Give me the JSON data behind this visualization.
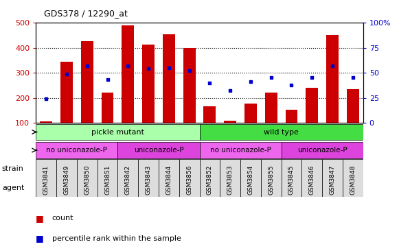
{
  "title": "GDS378 / 12290_at",
  "categories": [
    "GSM3841",
    "GSM3849",
    "GSM3850",
    "GSM3851",
    "GSM3842",
    "GSM3843",
    "GSM3844",
    "GSM3856",
    "GSM3852",
    "GSM3853",
    "GSM3854",
    "GSM3855",
    "GSM3845",
    "GSM3846",
    "GSM3847",
    "GSM3848"
  ],
  "counts": [
    105,
    345,
    425,
    220,
    488,
    413,
    453,
    398,
    165,
    108,
    178,
    220,
    152,
    240,
    450,
    235
  ],
  "percentiles": [
    24,
    49,
    57,
    43,
    57,
    54,
    55,
    52,
    40,
    32,
    41,
    45,
    38,
    45,
    57,
    45
  ],
  "bar_color": "#cc0000",
  "dot_color": "#0000cc",
  "ylim_left": [
    100,
    500
  ],
  "ylim_right": [
    0,
    100
  ],
  "yticks_left": [
    100,
    200,
    300,
    400,
    500
  ],
  "yticks_right": [
    0,
    25,
    50,
    75,
    100
  ],
  "strain_groups": [
    {
      "label": "pickle mutant",
      "start": 0,
      "end": 8,
      "color": "#aaffaa"
    },
    {
      "label": "wild type",
      "start": 8,
      "end": 16,
      "color": "#44dd44"
    }
  ],
  "agent_groups": [
    {
      "label": "no uniconazole-P",
      "start": 0,
      "end": 4,
      "color": "#ee66ee"
    },
    {
      "label": "uniconazole-P",
      "start": 4,
      "end": 8,
      "color": "#dd44dd"
    },
    {
      "label": "no uniconazole-P",
      "start": 8,
      "end": 12,
      "color": "#ee66ee"
    },
    {
      "label": "uniconazole-P",
      "start": 12,
      "end": 16,
      "color": "#dd44dd"
    }
  ],
  "legend_count_color": "#cc0000",
  "legend_dot_color": "#0000cc",
  "background_color": "#ffffff",
  "tick_label_color_left": "#cc0000",
  "tick_label_color_right": "#0000cc",
  "strain_label": "strain",
  "agent_label": "agent",
  "xticklabel_bg": "#dddddd"
}
